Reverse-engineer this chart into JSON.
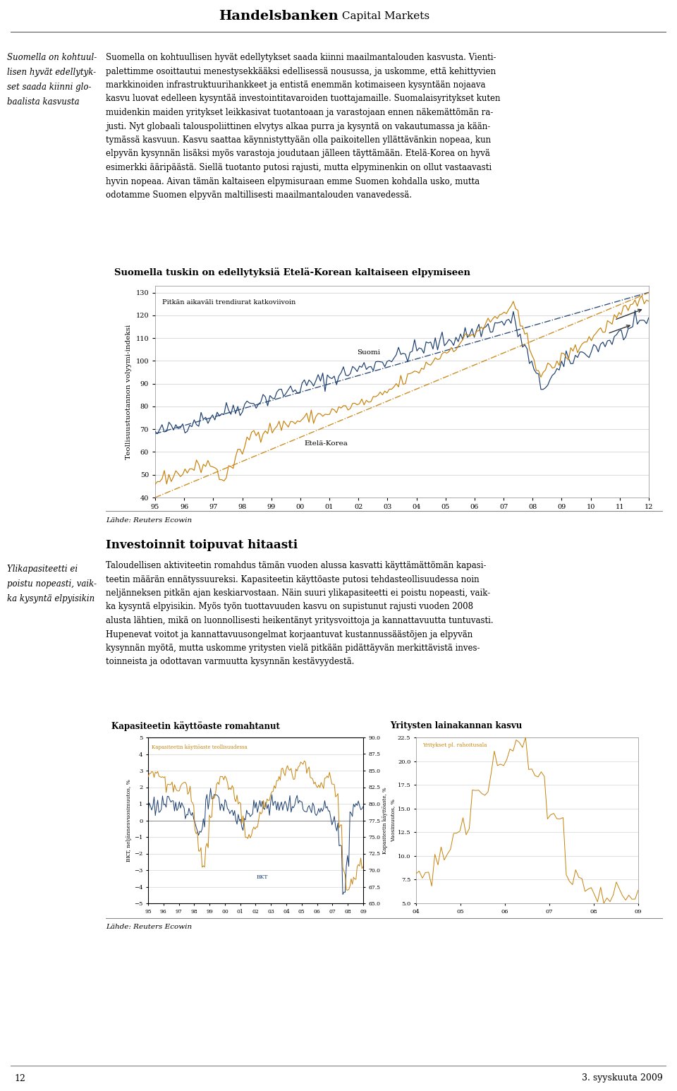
{
  "page_title_bold": "Handelsbanken",
  "page_title_regular": " Capital Markets",
  "page_number": "12",
  "page_date": "3. syyskuuta 2009",
  "left_col1_text": "Suomella on kohtuul-\nlisen hyvät edellytyk-\nset saada kiinni glo-\nbaalista kasvusta",
  "left_col2_text": "Ylikapasiteetti ei\npoistu nopeasti, vaik-\nka kysyntä elpyisikin",
  "right_text1": "Suomella on kohtuullisen hyvät edellytykset saada kiinni maailmantalouden kasvusta. Vienti-\npalettimme osoittautui menestysekkääksi edellisessä nousussa, ja uskomme, että kehittyvien\nmarkkinoiden infrastruktuurihankkeet ja entistä enemmän kotimaiseen kysyntään nojaava\nkasvu luovat edelleen kysyntää investointitavaroiden tuottajamaille. Suomalaisyritykset kuten\nmuidenkin maiden yritykset leikkasivat tuotantoaan ja varastojaan ennen näkemättömän ra-\njusti. Nyt globaali talouspoliittinen elvytys alkaa purra ja kysyntä on vakautumassa ja kään-\ntymässä kasvuun. Kasvu saattaa käynnistyttyään olla paikoitellen yllättävänkin nopeaa, kun\nelpyvän kysynnän lisäksi myös varastoja joudutaan jälleen täyttämään. Etelä-Korea on hyvä\nesimerkki ääripäästä. Siellä tuotanto putosi rajusti, mutta elpyminenkin on ollut vastaavasti\nhyvin nopeaa. Aivan tämän kaltaiseen elpymisuraan emme Suomen kohdalla usko, mutta\nodotamme Suomen elpyvän maltillisesti maailmantalouden vanavedessä.",
  "chart1_title": "Suomella tuskin on edellytyksiä Etelä-Korean kaltaiseen elpymiseen",
  "chart1_ylabel": "Teollisuustuotannon volyymi-indeksi",
  "chart1_yticks": [
    40,
    50,
    60,
    70,
    80,
    90,
    100,
    110,
    120,
    130
  ],
  "chart1_xticks": [
    "95",
    "96",
    "97",
    "98",
    "99",
    "00",
    "01",
    "02",
    "03",
    "04",
    "05",
    "06",
    "07",
    "08",
    "09",
    "10",
    "11",
    "12"
  ],
  "chart1_ylim": [
    40,
    133
  ],
  "chart1_xlim": [
    0,
    215
  ],
  "chart1_annotation1": "Pitkän aikaväli trendiurat katkoviivoin",
  "chart1_annotation2": "Suomi",
  "chart1_annotation3": "Etelä-Korea",
  "chart1_suomi_color": "#1B3E6F",
  "chart1_korea_color": "#C8820A",
  "chart1_bg": "#E0E0E0",
  "chart1_plot_bg": "#FFFFFF",
  "source_text": "Lähde: Reuters Ecowin",
  "section2_title": "Investoinnit toipuvat hitaasti",
  "right_text2": "Taloudellisen aktiviteetin romahdus tämän vuoden alussa kasvatti käyttämättömän kapasi-\nteetin määrän ennätyssuureksi. Kapasiteetin käyttöaste putosi tehdasteollisuudessa noin\nneljänneksen pitkän ajan keskiarvostaan. Näin suuri ylikapasiteetti ei poistu nopeasti, vaik-\nka kysyntä elpyisikin. Myös työn tuottavuuden kasvu on supistunut rajusti vuoden 2008\nalusta lähtien, mikä on luonnollisesti heikentänyt yritysvoittoja ja kannattavuutta tuntuvasti.\nHupenevat voitot ja kannattavuusongelmat korjaantuvat kustannussäästöjen ja elpyvän\nkysynnän myötä, mutta uskomme yritysten vielä pitkään pidättäyvän merkittävistä inves-\ntoinneista ja odottavan varmuutta kysynnän kestävyydestä.",
  "chart2_title": "Kapasiteetin käyttöaste romahtanut",
  "chart2_annotation_cap": "Kapasiteetin käyttöaste teollisuudessa",
  "chart2_annotation_bkt": "BKT",
  "chart2_ylabel_left": "BKT, neljännesvuosimuutos, %",
  "chart2_ylabel_right": "Kapasiteetin käyttöaste, %",
  "chart2_yticks_left": [
    -5,
    -4,
    -3,
    -2,
    -1,
    0,
    1,
    2,
    3,
    4,
    5
  ],
  "chart2_yticks_right": [
    65.0,
    67.5,
    70.0,
    72.5,
    75.0,
    77.5,
    80.0,
    82.5,
    85.0,
    87.5,
    90.0
  ],
  "chart2_xticks": [
    "95",
    "96",
    "97",
    "98",
    "99",
    "00",
    "01",
    "02",
    "03",
    "04",
    "05",
    "06",
    "07",
    "08",
    "09"
  ],
  "chart2_bkt_color": "#1B3E6F",
  "chart2_cap_color": "#C8820A",
  "chart2_bg": "#E0E0E0",
  "chart3_title": "Yritysten lainakannan kasvu",
  "chart3_annotation": "Yritykset pl. rahoitusala",
  "chart3_ylabel_left": "Vuosimuutos, %",
  "chart3_yticks_left": [
    5.0,
    7.5,
    10.0,
    12.5,
    15.0,
    17.5,
    20.0,
    22.5
  ],
  "chart3_xticks": [
    "04",
    "05",
    "06",
    "07",
    "08",
    "09"
  ],
  "chart3_color": "#C8820A",
  "chart3_bg": "#E0E0E0"
}
